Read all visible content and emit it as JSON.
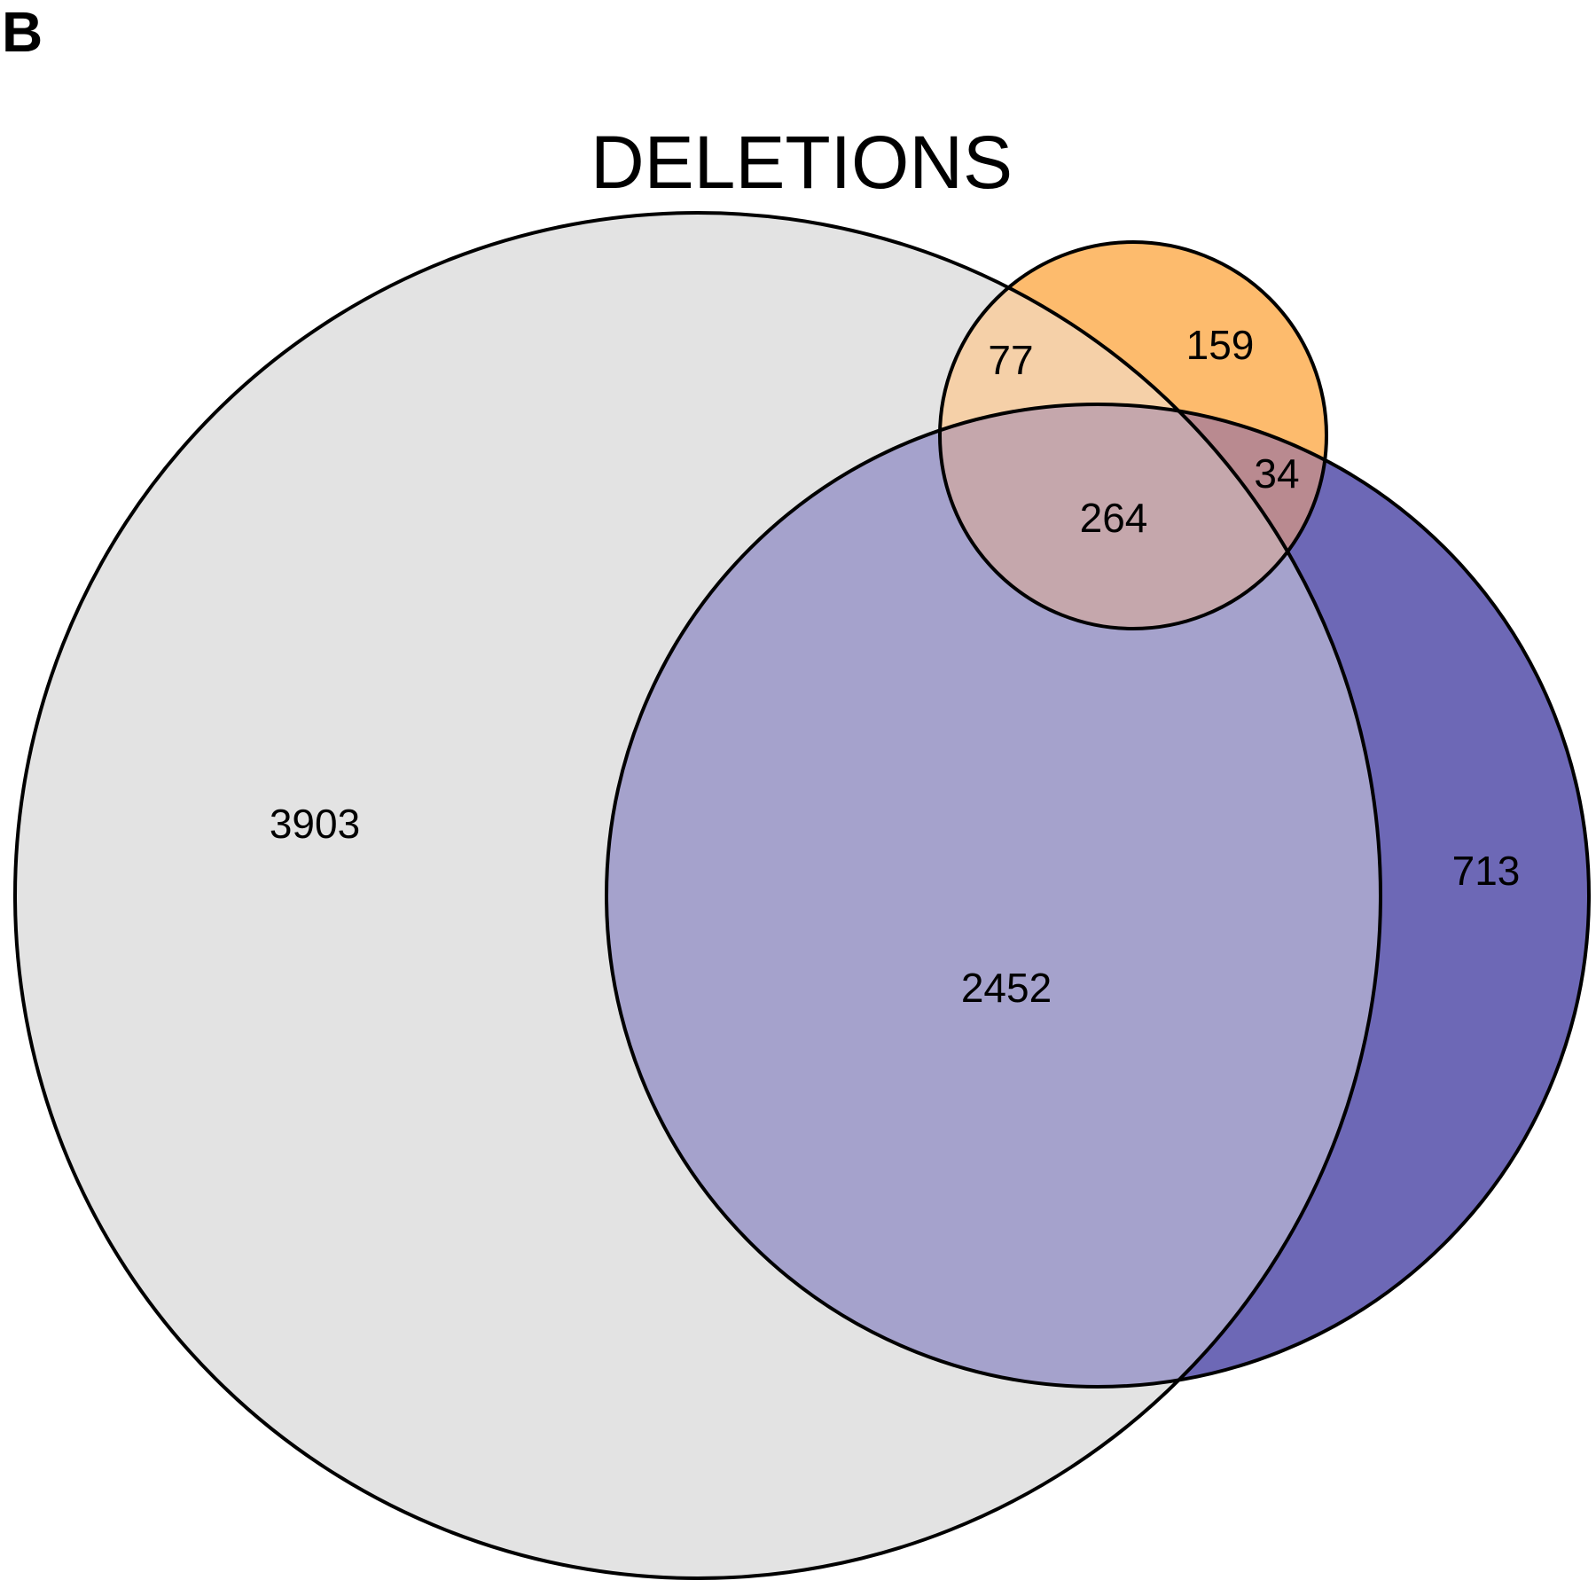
{
  "panel_label": "B",
  "title": "DELETIONS",
  "sets": [
    {
      "id": "A",
      "color": "#e3e3e3"
    },
    {
      "id": "B",
      "color": "#fdbb6d"
    },
    {
      "id": "C",
      "color": "#6d68b6"
    }
  ],
  "regions": {
    "A_only": {
      "value": "3903",
      "color": "#e3e3e3"
    },
    "B_only": {
      "value": "159",
      "color": "#fdbb6d"
    },
    "C_only": {
      "value": "713",
      "color": "#6d68b6"
    },
    "A_B": {
      "value": "77",
      "color": "#f5d0a8"
    },
    "A_C": {
      "value": "2452",
      "color": "#a5a2cc"
    },
    "B_C": {
      "value": "34",
      "color": "#b98a90"
    },
    "A_B_C": {
      "value": "264",
      "color": "#c5a7ac"
    }
  }
}
